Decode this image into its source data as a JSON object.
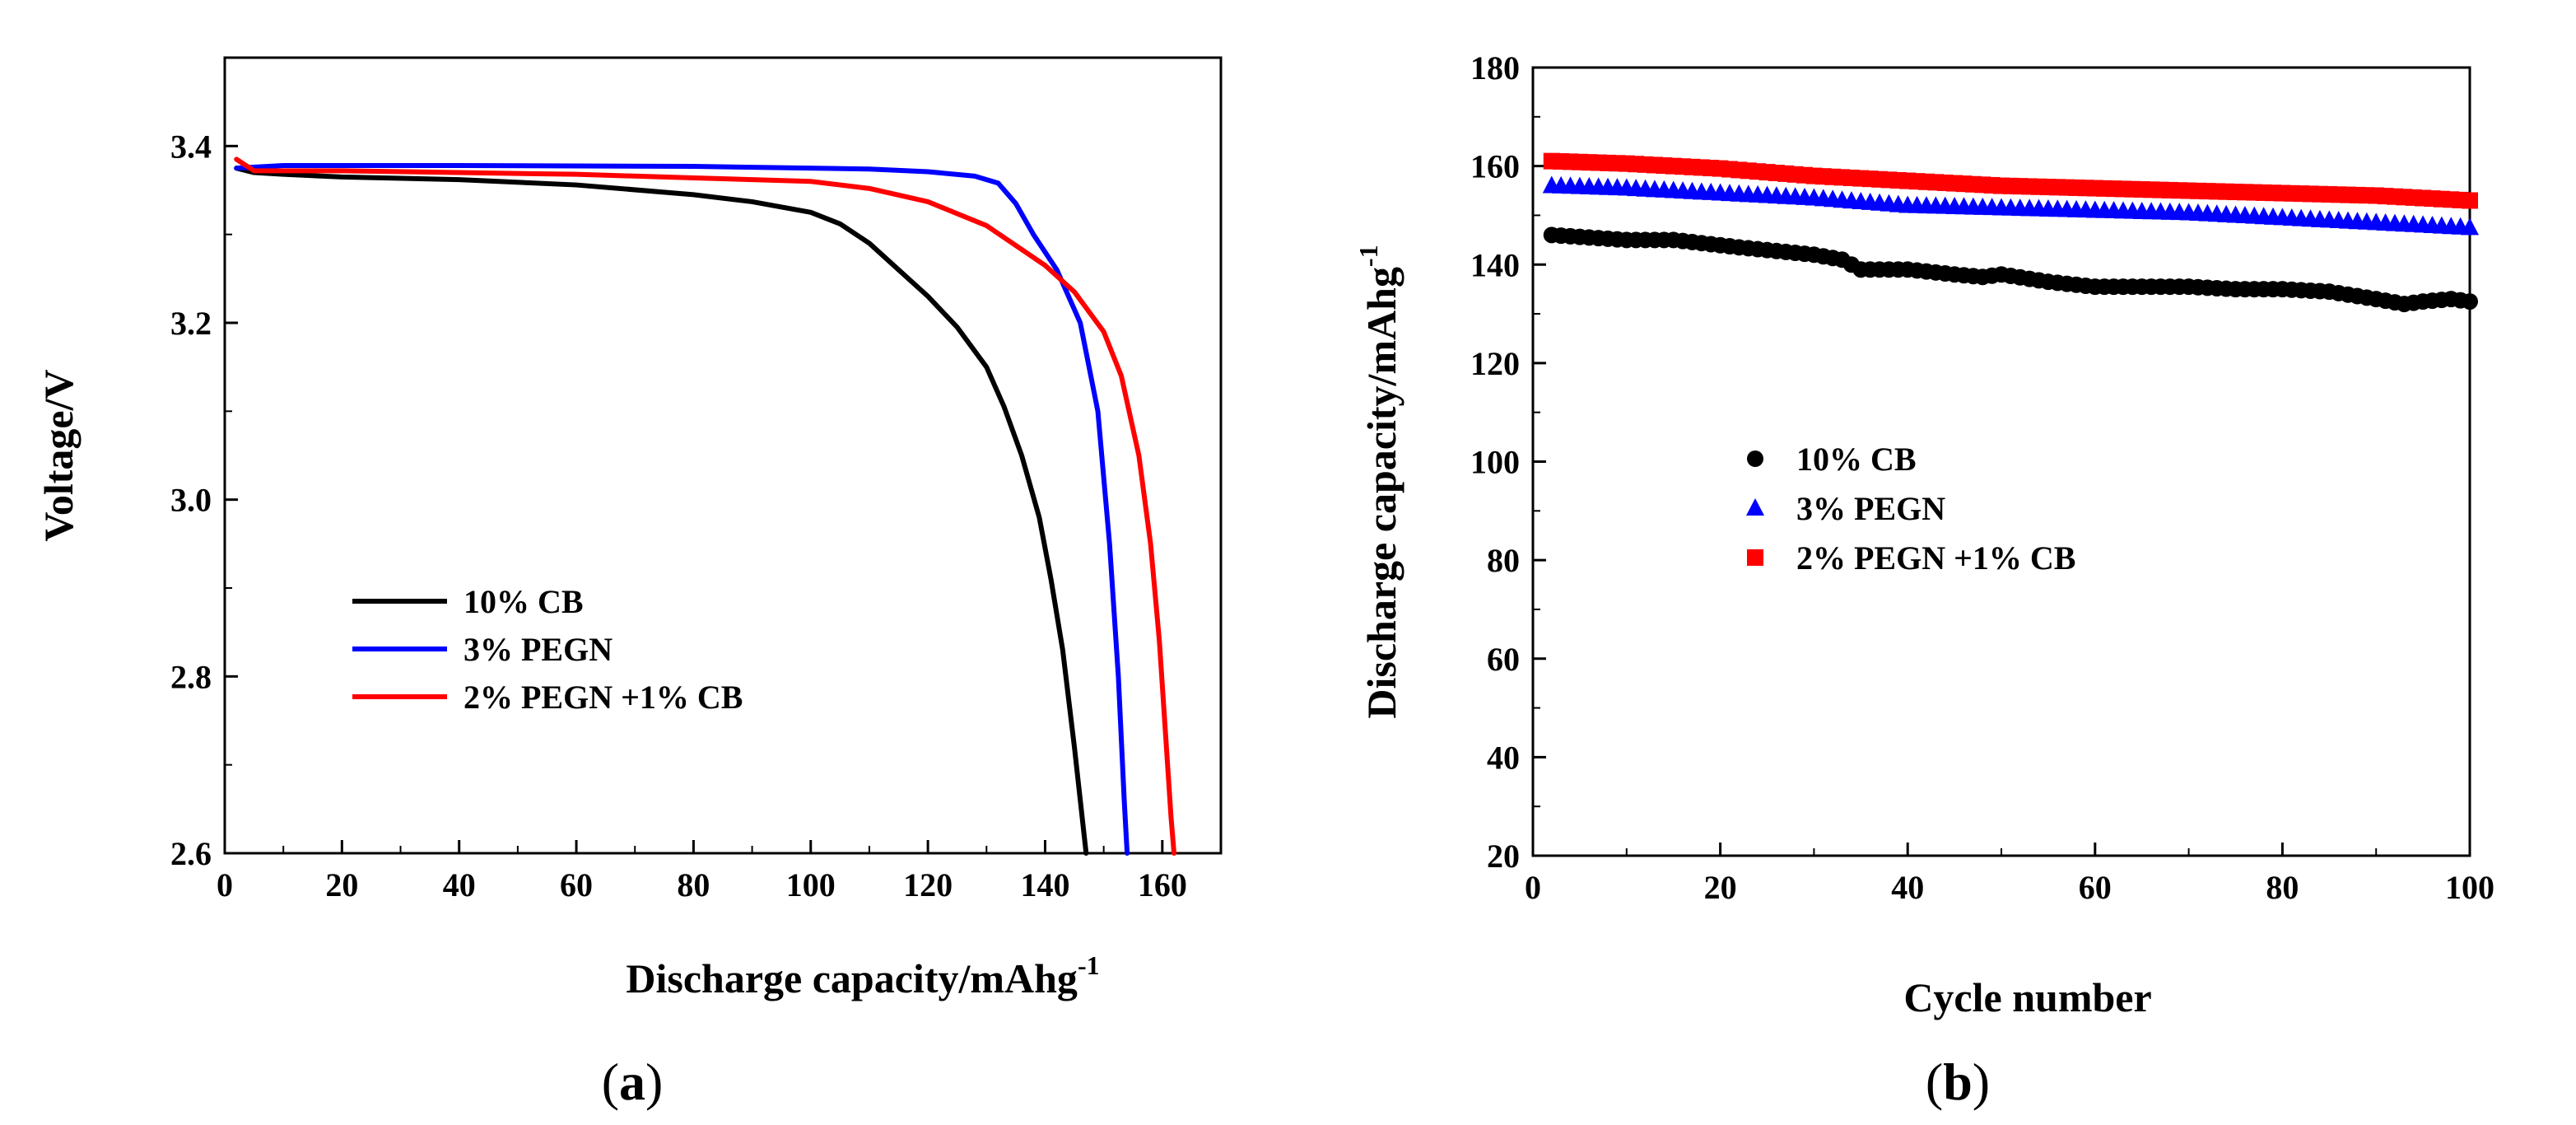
{
  "panels": {
    "a": {
      "prefix": "(",
      "letter": "a",
      "suffix": ")"
    },
    "b": {
      "prefix": "(",
      "letter": "b",
      "suffix": ")"
    }
  },
  "chart_data": [
    {
      "id": "a",
      "type": "line",
      "title": "",
      "xlabel": "Discharge capacity/mAhg",
      "xlabel_sup": "-1",
      "ylabel": "Voltage/V",
      "xlim": [
        0,
        170
      ],
      "ylim": [
        2.6,
        3.5
      ],
      "xticks": [
        0,
        20,
        40,
        60,
        80,
        100,
        120,
        140,
        160
      ],
      "yticks": [
        2.6,
        2.8,
        3.0,
        3.2,
        3.4
      ],
      "ytick_labels": [
        "2.6",
        "2.8",
        "3.0",
        "3.2",
        "3.4"
      ],
      "legend_position": "lower-left",
      "series": [
        {
          "name": "10% CB",
          "color": "#000000",
          "x": [
            2,
            5,
            10,
            20,
            40,
            60,
            80,
            90,
            100,
            105,
            110,
            115,
            120,
            125,
            130,
            133,
            136,
            139,
            141,
            143,
            145,
            146,
            146.5,
            147
          ],
          "y": [
            3.375,
            3.37,
            3.368,
            3.365,
            3.362,
            3.356,
            3.345,
            3.337,
            3.325,
            3.312,
            3.29,
            3.26,
            3.23,
            3.195,
            3.15,
            3.105,
            3.05,
            2.98,
            2.91,
            2.83,
            2.72,
            2.66,
            2.63,
            2.6
          ]
        },
        {
          "name": "3% PEGN",
          "color": "#0000ff",
          "x": [
            2,
            10,
            40,
            80,
            110,
            120,
            128,
            132,
            135,
            138,
            142,
            146,
            149,
            151,
            152.5,
            153.5,
            154
          ],
          "y": [
            3.375,
            3.378,
            3.378,
            3.377,
            3.374,
            3.371,
            3.366,
            3.358,
            3.335,
            3.3,
            3.26,
            3.2,
            3.1,
            2.95,
            2.8,
            2.66,
            2.6
          ]
        },
        {
          "name": "2% PEGN +1% CB",
          "color": "#ff0000",
          "x": [
            2,
            5,
            20,
            60,
            80,
            100,
            110,
            120,
            130,
            140,
            145,
            150,
            153,
            156,
            158,
            159.5,
            160.5,
            161.5,
            162
          ],
          "y": [
            3.385,
            3.372,
            3.372,
            3.368,
            3.364,
            3.36,
            3.352,
            3.337,
            3.31,
            3.265,
            3.235,
            3.19,
            3.14,
            3.05,
            2.95,
            2.84,
            2.74,
            2.64,
            2.6
          ]
        }
      ]
    },
    {
      "id": "b",
      "type": "scatter",
      "title": "",
      "xlabel": "Cycle number",
      "ylabel": "Discharge capacity/mAhg",
      "ylabel_sup": "-1",
      "xlim": [
        0,
        100
      ],
      "ylim": [
        20,
        180
      ],
      "xticks": [
        0,
        20,
        40,
        60,
        80,
        100
      ],
      "yticks": [
        20,
        40,
        60,
        80,
        100,
        120,
        140,
        160,
        180
      ],
      "legend_position": "center-left",
      "series": [
        {
          "name": "10% CB",
          "color": "#000000",
          "marker": "circle",
          "x": [
            2,
            10,
            15,
            22,
            30,
            33,
            35,
            40,
            45,
            48,
            50,
            55,
            60,
            70,
            75,
            80,
            85,
            90,
            93,
            95,
            98,
            100
          ],
          "y": [
            146,
            145,
            145,
            143.5,
            142,
            141,
            139,
            139,
            138,
            137.5,
            138,
            136.5,
            135.5,
            135.5,
            135,
            135,
            134.5,
            133,
            132,
            132.5,
            133,
            132.5
          ]
        },
        {
          "name": "3% PEGN",
          "color": "#0000ff",
          "marker": "triangle",
          "x": [
            2,
            10,
            15,
            20,
            30,
            40,
            50,
            60,
            70,
            75,
            80,
            85,
            90,
            95,
            100
          ],
          "y": [
            156,
            155.5,
            155,
            154.5,
            153.5,
            152,
            151.5,
            151,
            150.5,
            150,
            149.5,
            149,
            148.5,
            148,
            147.5
          ]
        },
        {
          "name": "2% PEGN +1% CB",
          "color": "#ff0000",
          "marker": "square",
          "x": [
            2,
            10,
            15,
            20,
            30,
            40,
            50,
            60,
            70,
            80,
            90,
            100
          ],
          "y": [
            161,
            160.5,
            160,
            159.5,
            158,
            157,
            156,
            155.5,
            155,
            154.5,
            154,
            153
          ]
        }
      ]
    }
  ]
}
